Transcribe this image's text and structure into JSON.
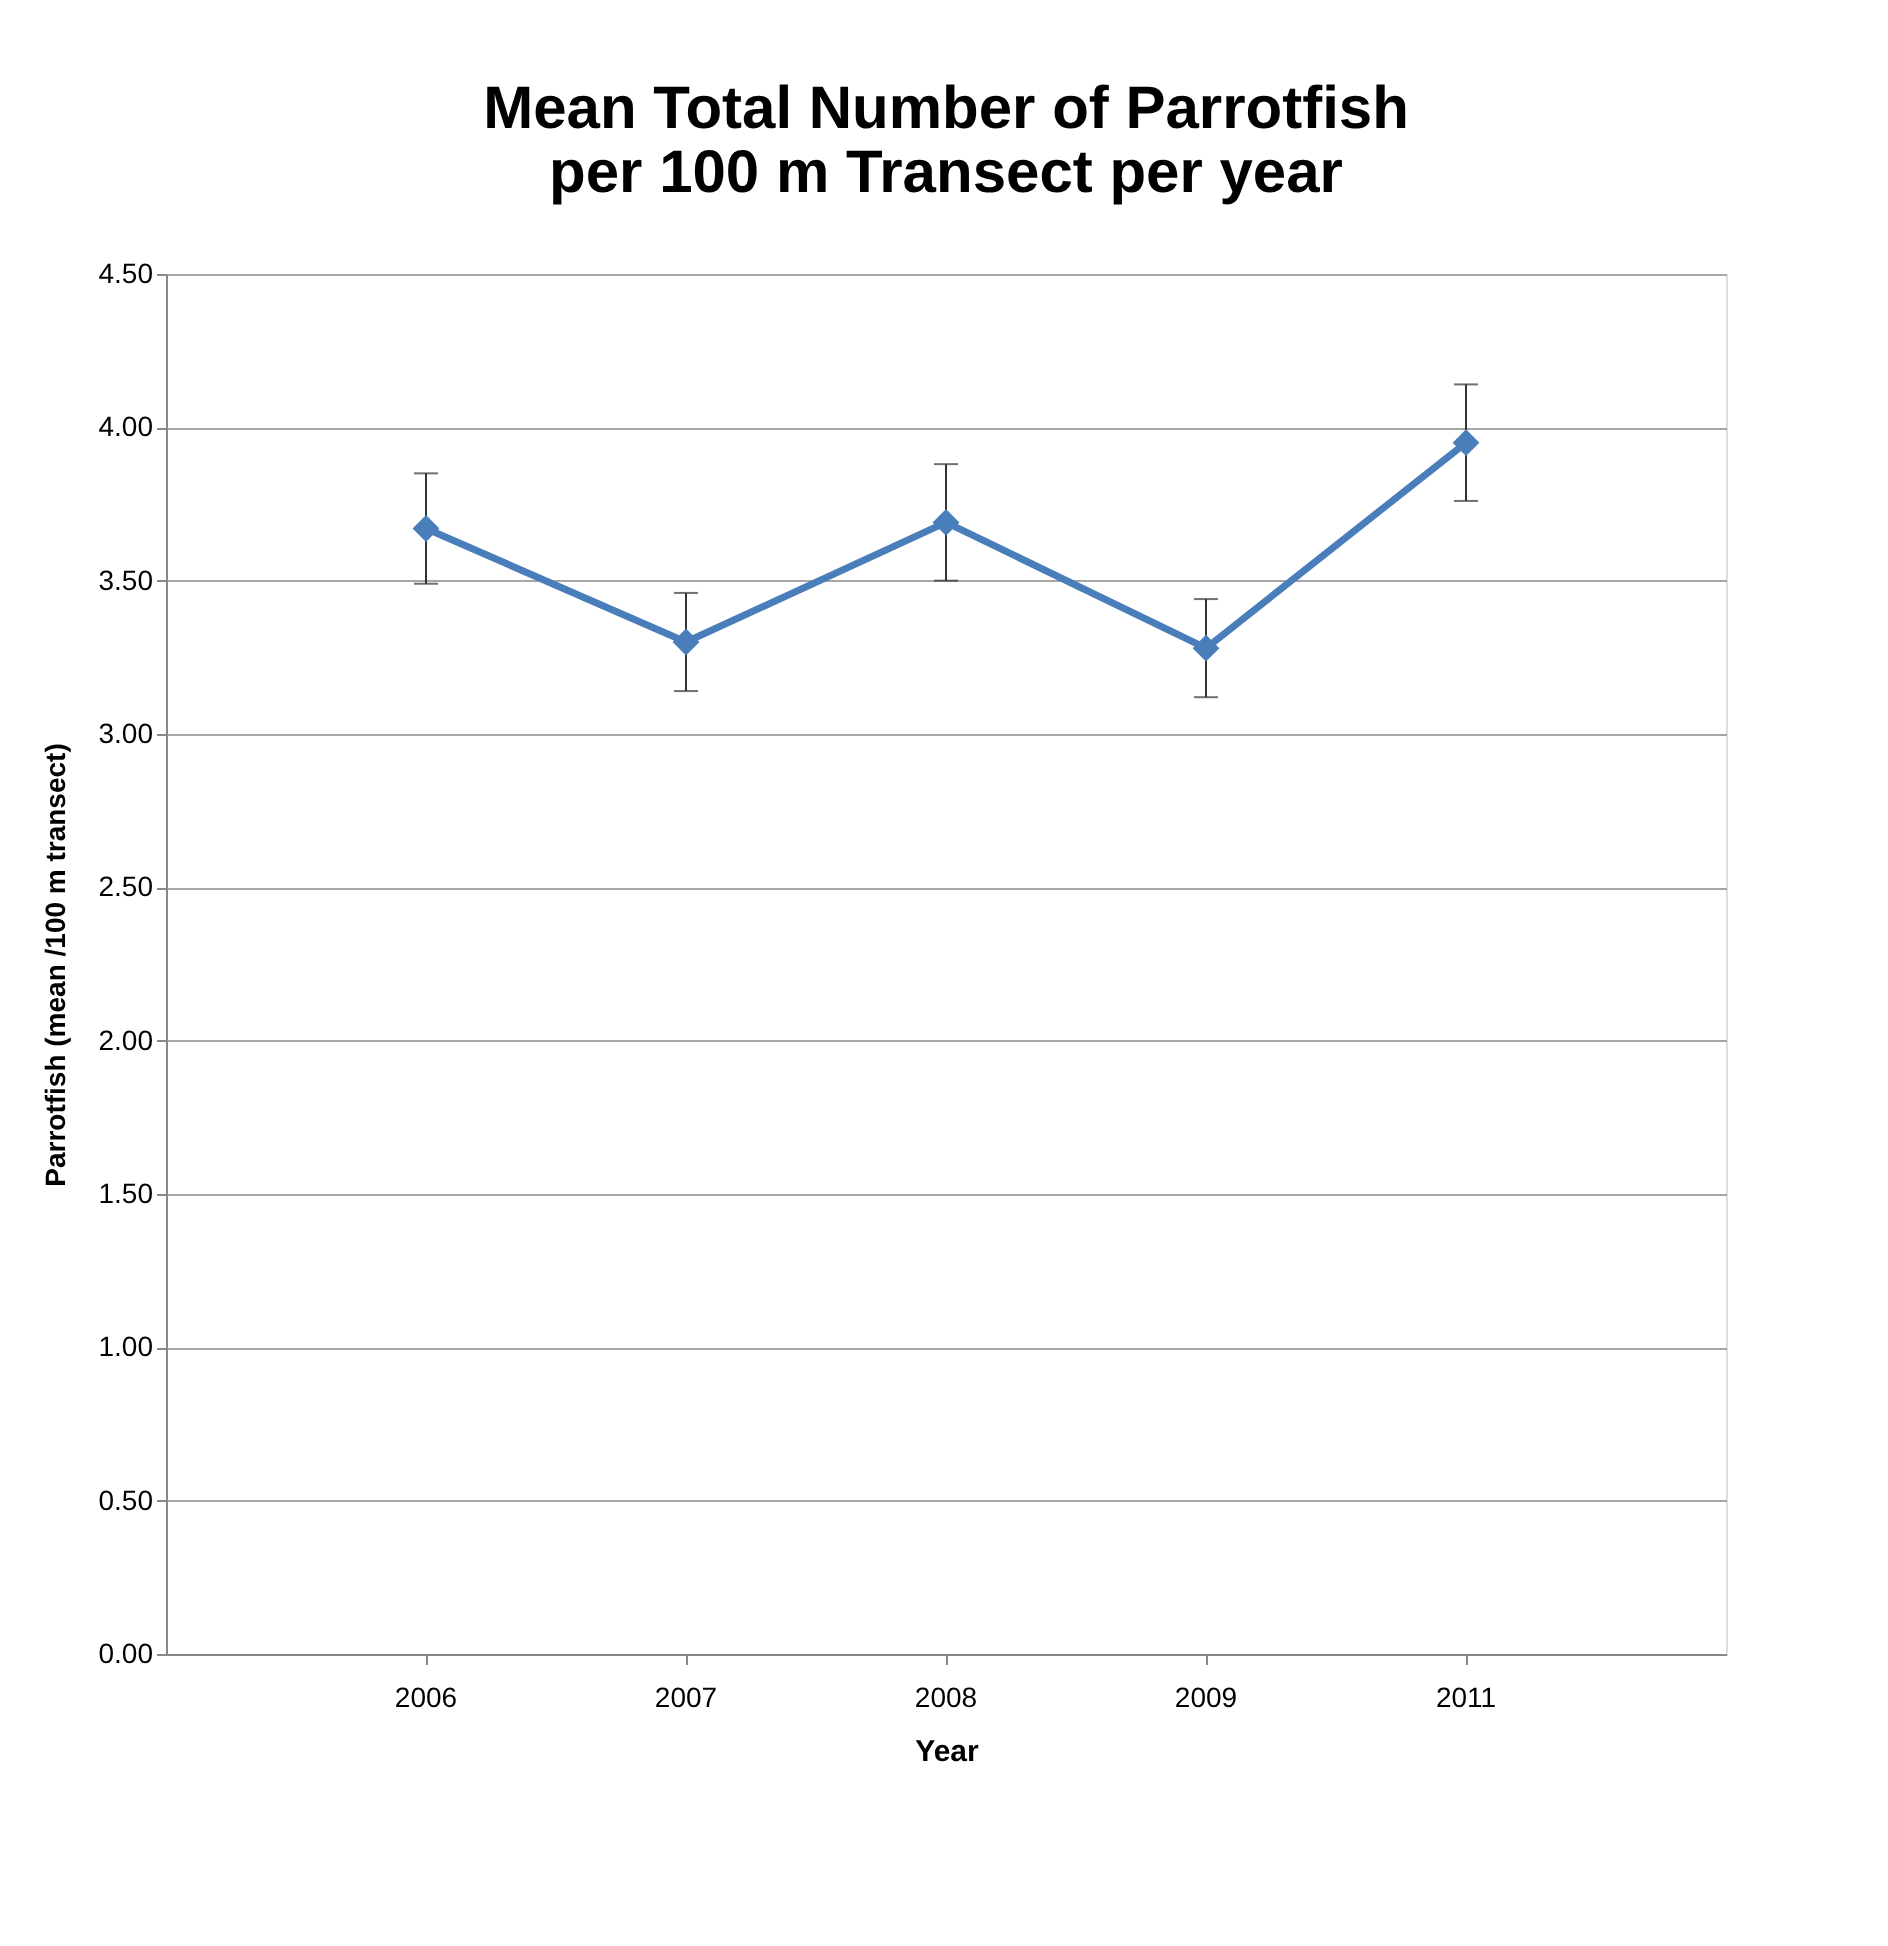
{
  "chart_data": {
    "type": "line",
    "title": "Mean Total Number of Parrotfish\nper 100 m Transect per year",
    "xlabel": "Year",
    "ylabel": "Parrotfish (mean /100 m transect)",
    "categories": [
      "2006",
      "2007",
      "2008",
      "2009",
      "2011"
    ],
    "series": [
      {
        "color": "#4a7ebb",
        "values": [
          3.67,
          3.3,
          3.69,
          3.28,
          3.95
        ],
        "errors": [
          0.18,
          0.16,
          0.19,
          0.16,
          0.19
        ]
      }
    ],
    "ylim": [
      0,
      4.5
    ],
    "yticks": [
      {
        "value": 0,
        "label": "0.00"
      },
      {
        "value": 0.5,
        "label": "0.50"
      },
      {
        "value": 1,
        "label": "1.00"
      },
      {
        "value": 1.5,
        "label": "1.50"
      },
      {
        "value": 2,
        "label": "2.00"
      },
      {
        "value": 2.5,
        "label": "2.50"
      },
      {
        "value": 3,
        "label": "3.00"
      },
      {
        "value": 3.5,
        "label": "3.50"
      },
      {
        "value": 4,
        "label": "4.00"
      },
      {
        "value": 4.5,
        "label": "4.50"
      }
    ],
    "grid": "y",
    "marker": "diamond",
    "line_style": "solid"
  }
}
